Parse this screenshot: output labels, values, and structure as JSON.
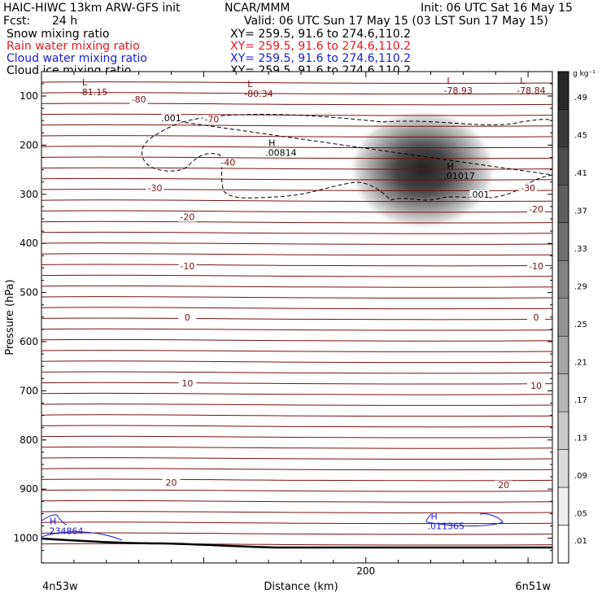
{
  "header": {
    "title": "HAIC-HIWC 13km ARW-GFS init",
    "org": "NCAR/MMM",
    "init": "Init: 06 UTC Sat 16 May 15",
    "fcst_label": "Fcst:",
    "fcst_value": "24 h",
    "valid": "Valid: 06 UTC Sun 17 May 15 (03 LST Sun 17 May 15)",
    "fields": [
      {
        "name": "Snow mixing ratio",
        "xy": "XY= 259.5, 91.6 to 274.6,110.2",
        "color": "#000000"
      },
      {
        "name": "Rain water mixing ratio",
        "xy": "XY= 259.5, 91.6 to 274.6,110.2",
        "color": "#e8161b"
      },
      {
        "name": "Cloud water mixing ratio",
        "xy": "XY= 259.5, 91.6 to 274.6,110.2",
        "color": "#1a1ad6"
      },
      {
        "name": "Cloud ice mixing ratio",
        "xy": "XY= 259.5, 91.6 to 274.6,110.2",
        "color": "#000000"
      }
    ]
  },
  "chart_data": {
    "type": "contour cross-section",
    "xlabel": "Distance (km)",
    "ylabel": "Pressure (hPa)",
    "x_ticks": [
      {
        "value": 200,
        "label": "200"
      }
    ],
    "x_range_km": [
      0,
      315
    ],
    "y_range_hpa": [
      50,
      1050
    ],
    "y_ticks": [
      100,
      200,
      300,
      400,
      500,
      600,
      700,
      800,
      900,
      1000
    ],
    "x_endpoints": {
      "left": "4n53w",
      "right": "6n51w"
    },
    "colorbar": {
      "unit": "g kg⁻¹",
      "labels": [
        ".49",
        ".45",
        ".41",
        ".37",
        ".33",
        ".29",
        ".25",
        ".21",
        ".17",
        ".13",
        ".09",
        ".05",
        ".01"
      ]
    },
    "contour_color": "#7a1010",
    "temperature_labels": [
      {
        "text": "-80",
        "x": 60,
        "p": 112
      },
      {
        "text": "-70",
        "x": 105,
        "p": 152
      },
      {
        "text": "-40",
        "x": 115,
        "p": 240
      },
      {
        "text": "-30",
        "x": 70,
        "p": 292
      },
      {
        "text": "-30",
        "x": 300,
        "p": 292
      },
      {
        "text": "-20",
        "x": 90,
        "p": 351
      },
      {
        "text": "-20",
        "x": 305,
        "p": 335
      },
      {
        "text": "-10",
        "x": 90,
        "p": 451
      },
      {
        "text": "-10",
        "x": 305,
        "p": 451
      },
      {
        "text": "0",
        "x": 90,
        "p": 555
      },
      {
        "text": "0",
        "x": 305,
        "p": 555
      },
      {
        "text": "10",
        "x": 90,
        "p": 689
      },
      {
        "text": "10",
        "x": 305,
        "p": 694
      },
      {
        "text": "20",
        "x": 80,
        "p": 891
      },
      {
        "text": "20",
        "x": 285,
        "p": 896
      }
    ],
    "extrema_labels": [
      {
        "kind": "L",
        "value": "-81.15",
        "x": 25,
        "p": 92,
        "color": "#7a1010"
      },
      {
        "kind": "L",
        "value": "-80.34",
        "x": 127,
        "p": 95,
        "color": "#7a1010"
      },
      {
        "kind": "L",
        "value": "-78.93",
        "x": 250,
        "p": 88,
        "color": "#7a1010"
      },
      {
        "kind": "L",
        "value": "-78.84",
        "x": 295,
        "p": 88,
        "color": "#7a1010"
      },
      {
        "kind": "H",
        "value": ".00814",
        "x": 140,
        "p": 215,
        "color": "#000000"
      },
      {
        "kind": "H",
        "value": ".01017",
        "x": 250,
        "p": 262,
        "color": "#000000"
      },
      {
        "kind": "H",
        "value": ".234864",
        "x": 5,
        "p": 985,
        "color": "#1a1ad6"
      },
      {
        "kind": "H",
        "value": ".011365",
        "x": 240,
        "p": 975,
        "color": "#1a1ad6"
      }
    ],
    "ice_contour_labels": [
      {
        "text": ".001",
        "x": 80,
        "p": 150
      },
      {
        "text": ".001",
        "x": 270,
        "p": 305
      }
    ],
    "snow_maximum": {
      "x_center_km": 235,
      "p_center_hpa": 250,
      "peak": 0.45
    }
  }
}
